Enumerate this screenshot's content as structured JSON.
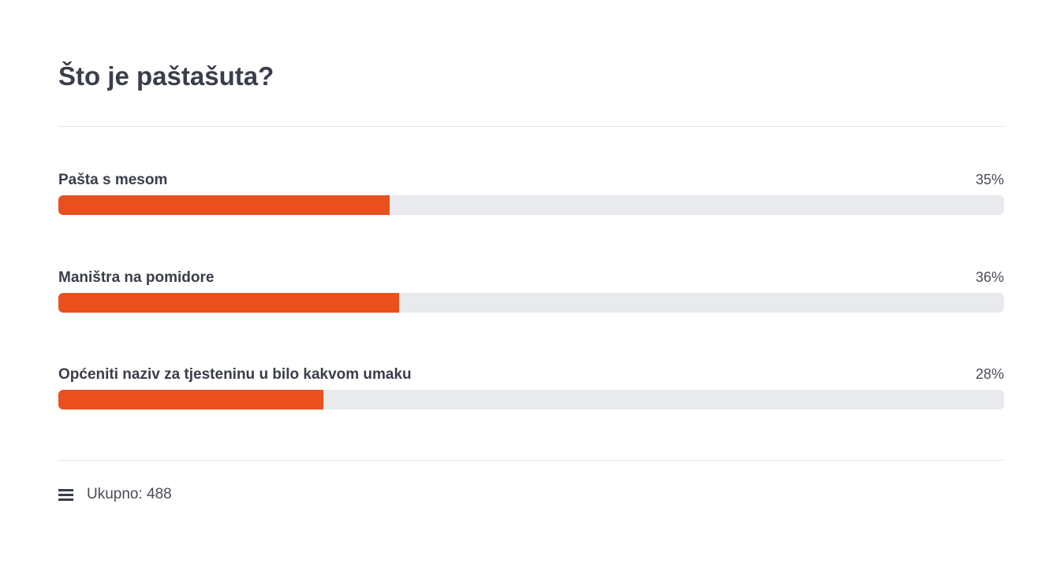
{
  "poll": {
    "title": "Što je paštašuta?",
    "accent_color": "#e9501d",
    "options": [
      {
        "label": "Pašta s mesom",
        "percent_label": "35%",
        "percent": 35
      },
      {
        "label": "Maništra na pomidore",
        "percent_label": "36%",
        "percent": 36
      },
      {
        "label": "Općeniti naziv za tjesteninu u bilo kakvom umaku",
        "percent_label": "28%",
        "percent": 28
      }
    ],
    "footer": {
      "icon": "menu-icon",
      "total_label": "Ukupno: 488"
    }
  }
}
